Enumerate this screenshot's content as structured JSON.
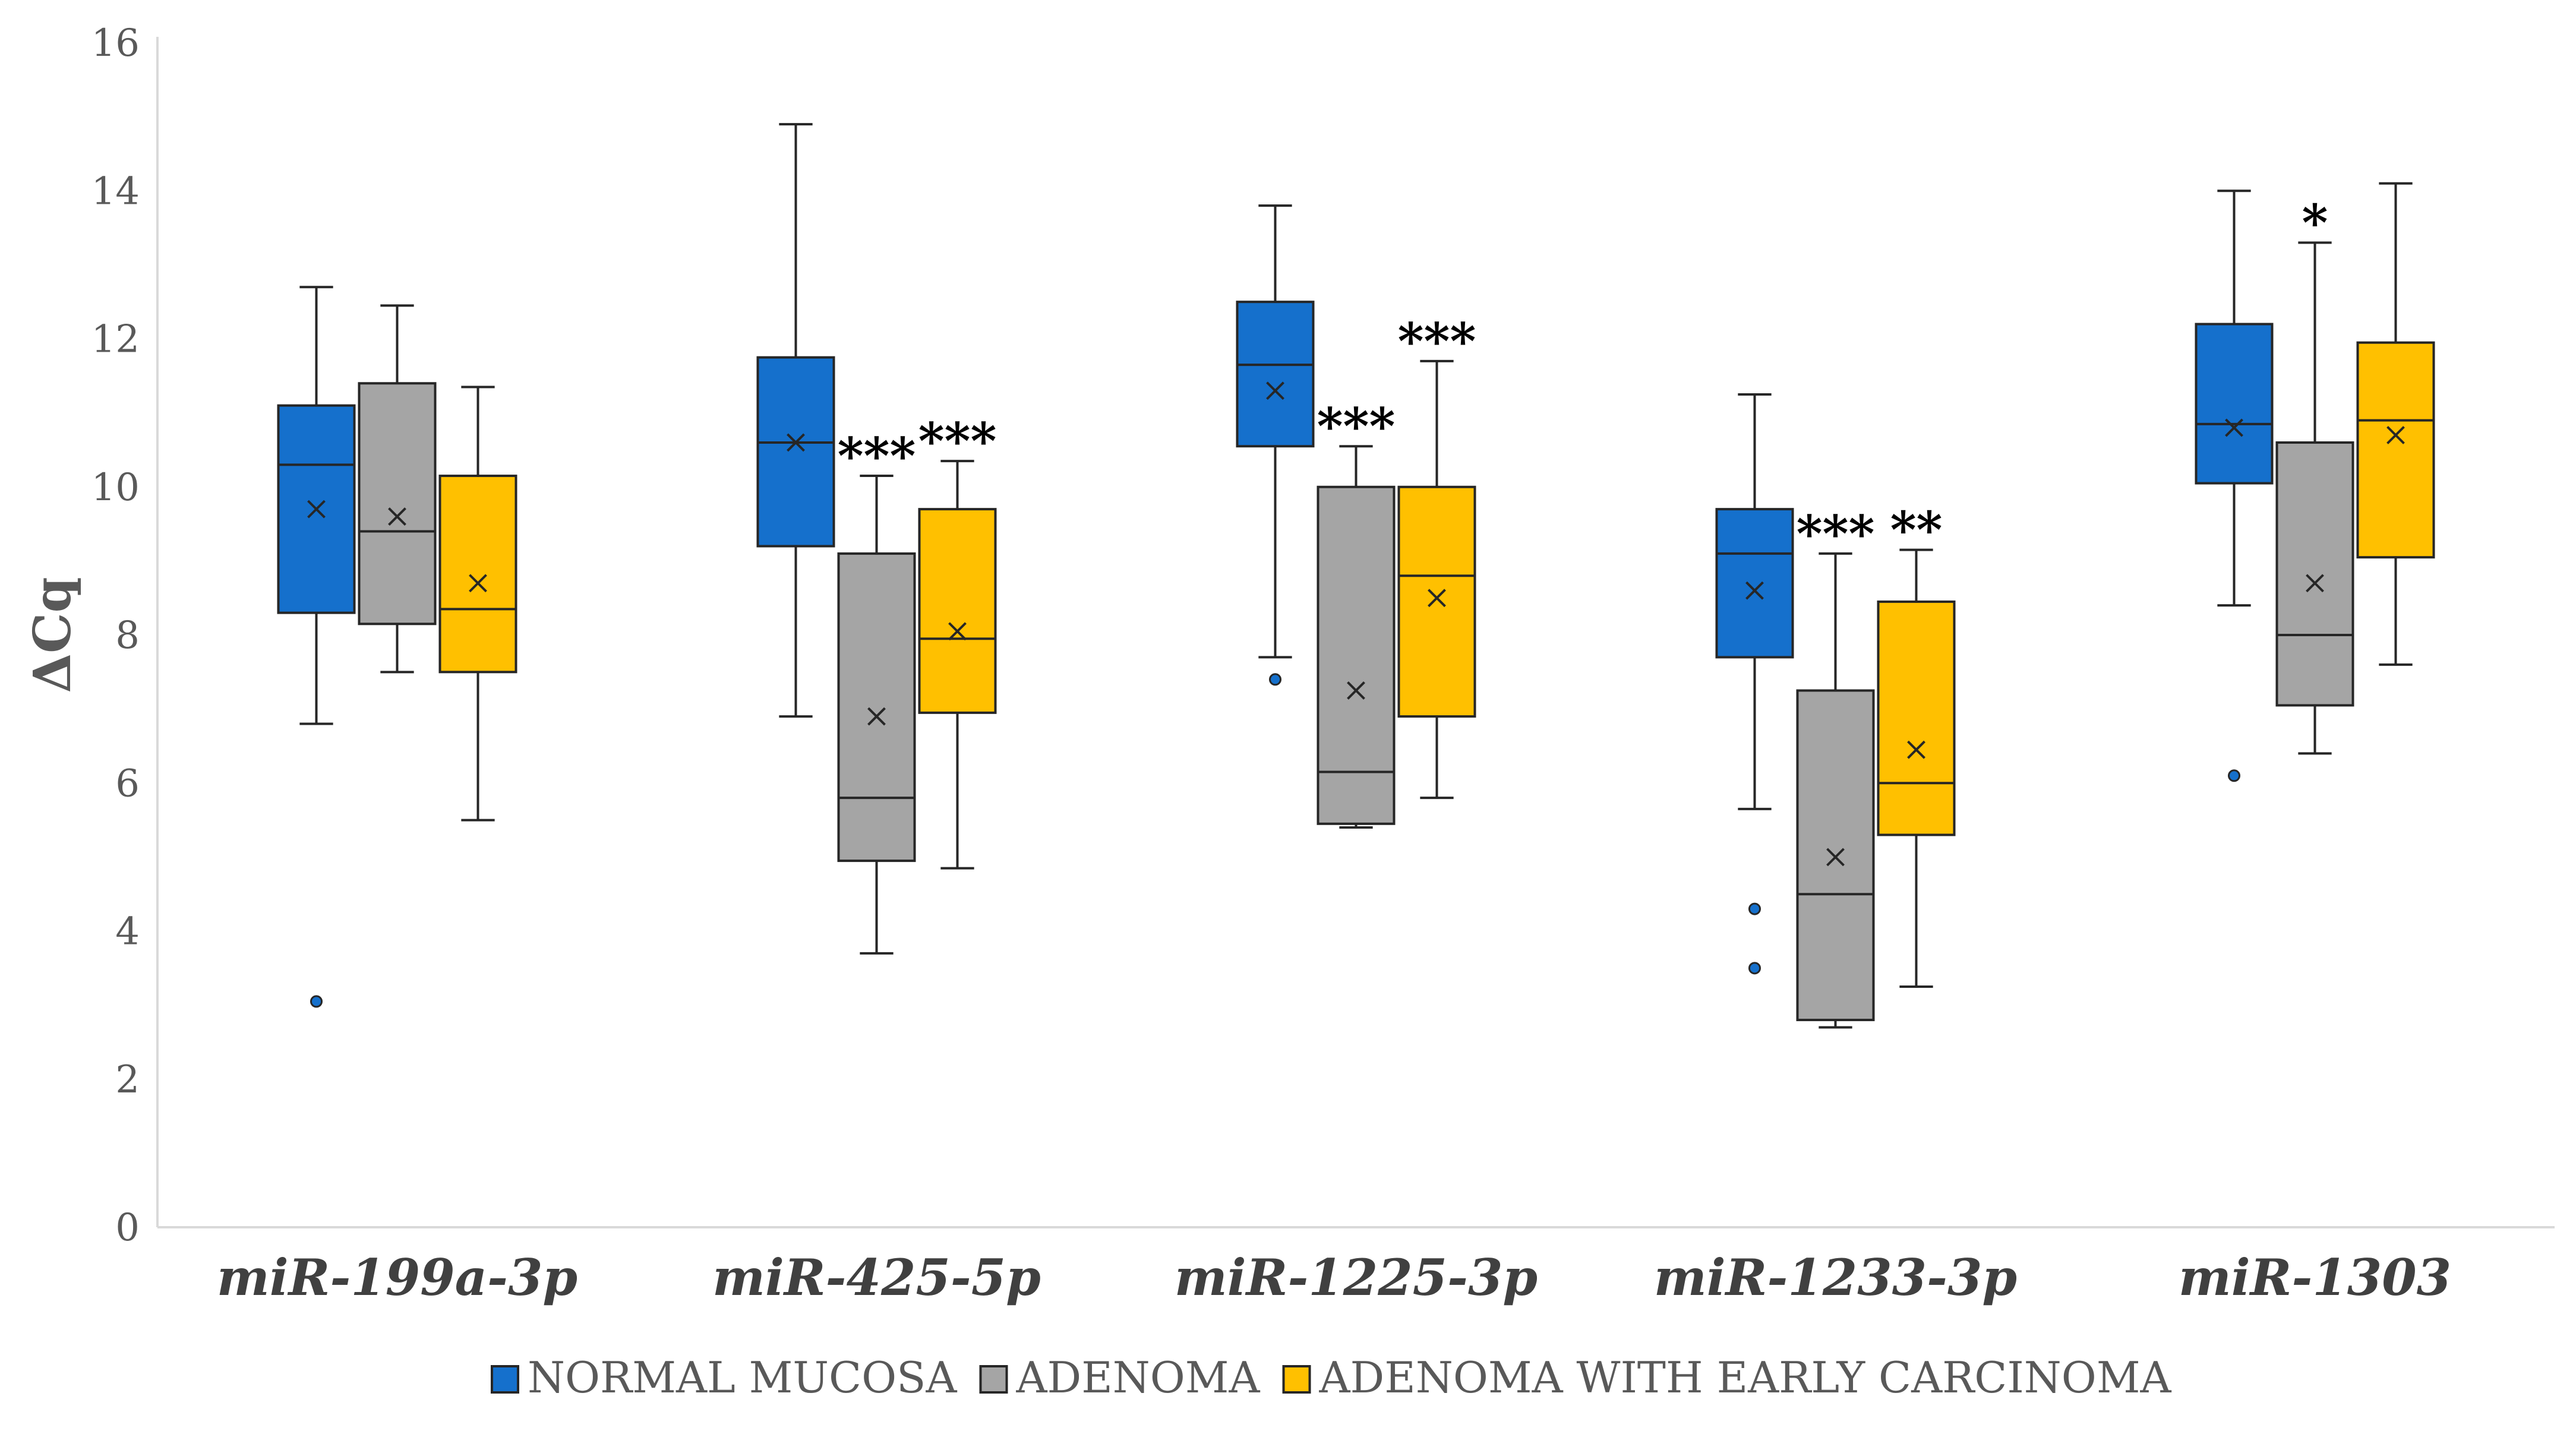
{
  "chart_data": {
    "type": "box",
    "title": "",
    "xlabel": "",
    "ylabel": "ΔCq",
    "ylim": [
      0,
      16
    ],
    "yticks": [
      0,
      2,
      4,
      6,
      8,
      10,
      12,
      14,
      16
    ],
    "grid": false,
    "legend_position": "bottom",
    "categories": [
      "miR-199a-3p",
      "miR-425-5p",
      "miR-1225-3p",
      "miR-1233-3p",
      "miR-1303"
    ],
    "series": [
      {
        "name": "NORMAL MUCOSA",
        "color": "#1570CC",
        "boxes": [
          {
            "min": 6.8,
            "q1": 8.3,
            "median": 10.3,
            "q3": 11.1,
            "max": 12.7,
            "mean": 9.7,
            "outliers": [
              3.05
            ]
          },
          {
            "min": 6.9,
            "q1": 9.2,
            "median": 10.6,
            "q3": 11.75,
            "max": 14.9,
            "mean": 10.6,
            "outliers": []
          },
          {
            "min": 7.7,
            "q1": 10.55,
            "median": 11.65,
            "q3": 12.5,
            "max": 13.8,
            "mean": 11.3,
            "outliers": [
              7.4
            ]
          },
          {
            "min": 5.65,
            "q1": 7.7,
            "median": 9.1,
            "q3": 9.7,
            "max": 11.25,
            "mean": 8.6,
            "outliers": [
              4.3,
              3.5
            ]
          },
          {
            "min": 8.4,
            "q1": 10.05,
            "median": 10.85,
            "q3": 12.2,
            "max": 14.0,
            "mean": 10.8,
            "outliers": [
              6.1
            ]
          }
        ]
      },
      {
        "name": "ADENOMA",
        "color": "#A5A5A5",
        "boxes": [
          {
            "min": 7.5,
            "q1": 8.15,
            "median": 9.4,
            "q3": 11.4,
            "max": 12.45,
            "mean": 9.6,
            "outliers": []
          },
          {
            "min": 3.7,
            "q1": 4.95,
            "median": 5.8,
            "q3": 9.1,
            "max": 10.15,
            "mean": 6.9,
            "outliers": []
          },
          {
            "min": 5.4,
            "q1": 5.45,
            "median": 6.15,
            "q3": 10.0,
            "max": 10.55,
            "mean": 7.25,
            "outliers": []
          },
          {
            "min": 2.7,
            "q1": 2.8,
            "median": 4.5,
            "q3": 7.25,
            "max": 9.1,
            "mean": 5.0,
            "outliers": []
          },
          {
            "min": 6.4,
            "q1": 7.05,
            "median": 8.0,
            "q3": 10.6,
            "max": 13.3,
            "mean": 8.7,
            "outliers": []
          }
        ]
      },
      {
        "name": "ADENOMA WITH EARLY CARCINOMA",
        "color": "#FFC000",
        "boxes": [
          {
            "min": 5.5,
            "q1": 7.5,
            "median": 8.35,
            "q3": 10.15,
            "max": 11.35,
            "mean": 8.7,
            "outliers": []
          },
          {
            "min": 4.85,
            "q1": 6.95,
            "median": 7.95,
            "q3": 9.7,
            "max": 10.35,
            "mean": 8.05,
            "outliers": []
          },
          {
            "min": 5.8,
            "q1": 6.9,
            "median": 8.8,
            "q3": 10.0,
            "max": 11.7,
            "mean": 8.5,
            "outliers": []
          },
          {
            "min": 3.25,
            "q1": 5.3,
            "median": 6.0,
            "q3": 8.45,
            "max": 9.15,
            "mean": 6.45,
            "outliers": []
          },
          {
            "min": 7.6,
            "q1": 9.05,
            "median": 10.9,
            "q3": 11.95,
            "max": 14.1,
            "mean": 10.7,
            "outliers": []
          }
        ]
      }
    ],
    "annotations": [
      {
        "category": 1,
        "series": 1,
        "text": "***"
      },
      {
        "category": 1,
        "series": 2,
        "text": "***"
      },
      {
        "category": 2,
        "series": 1,
        "text": "***"
      },
      {
        "category": 2,
        "series": 2,
        "text": "***"
      },
      {
        "category": 3,
        "series": 1,
        "text": "***"
      },
      {
        "category": 3,
        "series": 2,
        "text": "**"
      },
      {
        "category": 4,
        "series": 1,
        "text": "*"
      }
    ]
  }
}
